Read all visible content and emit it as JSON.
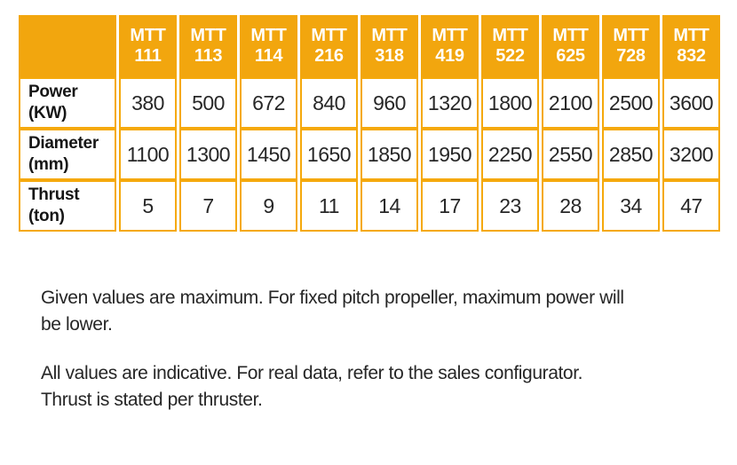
{
  "colors": {
    "accent_orange": "#F2A60E",
    "grid_orange": "#F5A90B",
    "header_text": "#FFFFFF",
    "body_text": "#2B2B2B"
  },
  "table": {
    "columns": [
      {
        "series": "MTT",
        "model": "111"
      },
      {
        "series": "MTT",
        "model": "113"
      },
      {
        "series": "MTT",
        "model": "114"
      },
      {
        "series": "MTT",
        "model": "216"
      },
      {
        "series": "MTT",
        "model": "318"
      },
      {
        "series": "MTT",
        "model": "419"
      },
      {
        "series": "MTT",
        "model": "522"
      },
      {
        "series": "MTT",
        "model": "625"
      },
      {
        "series": "MTT",
        "model": "728"
      },
      {
        "series": "MTT",
        "model": "832"
      }
    ],
    "rows": [
      {
        "label": "Power",
        "unit": "(KW)",
        "values": [
          380,
          500,
          672,
          840,
          960,
          1320,
          1800,
          2100,
          2500,
          3600
        ]
      },
      {
        "label": "Diameter",
        "unit": "(mm)",
        "values": [
          1100,
          1300,
          1450,
          1650,
          1850,
          1950,
          2250,
          2550,
          2850,
          3200
        ]
      },
      {
        "label": "Thrust",
        "unit": "(ton)",
        "values": [
          5,
          7,
          9,
          11,
          14,
          17,
          23,
          28,
          34,
          47
        ]
      }
    ]
  },
  "footnotes": [
    {
      "lines": [
        "Given values are maximum. For fixed pitch propeller, maximum power will",
        "be lower."
      ]
    },
    {
      "lines": [
        "All values are indicative. For real data, refer to the sales configurator.",
        "Thrust is stated per thruster."
      ]
    }
  ],
  "chart_data": {
    "type": "table",
    "categories": [
      "MTT 111",
      "MTT 113",
      "MTT 114",
      "MTT 216",
      "MTT 318",
      "MTT 419",
      "MTT 522",
      "MTT 625",
      "MTT 728",
      "MTT 832"
    ],
    "series": [
      {
        "name": "Power (KW)",
        "values": [
          380,
          500,
          672,
          840,
          960,
          1320,
          1800,
          2100,
          2500,
          3600
        ]
      },
      {
        "name": "Diameter (mm)",
        "values": [
          1100,
          1300,
          1450,
          1650,
          1850,
          1950,
          2250,
          2550,
          2850,
          3200
        ]
      },
      {
        "name": "Thrust (ton)",
        "values": [
          5,
          7,
          9,
          11,
          14,
          17,
          23,
          28,
          34,
          47
        ]
      }
    ]
  }
}
